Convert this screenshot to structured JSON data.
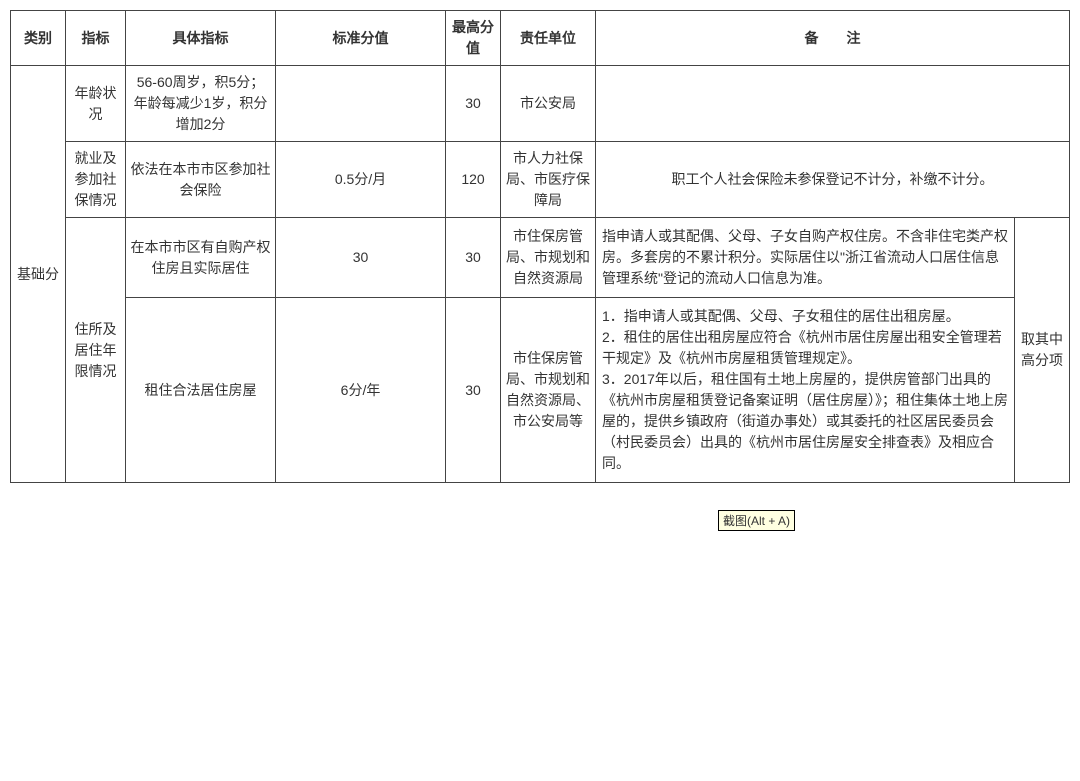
{
  "headers": {
    "category": "类别",
    "indicator": "指标",
    "detail": "具体指标",
    "standard": "标准分值",
    "max": "最高分值",
    "dept": "责任单位",
    "remark": "备　　注"
  },
  "category_label": "基础分",
  "rows": {
    "row1": {
      "indicator": "年龄状况",
      "detail": "56-60周岁，积5分；年龄每减少1岁，积分增加2分",
      "standard": "",
      "max": "30",
      "dept": "市公安局",
      "remark": ""
    },
    "row2": {
      "indicator": "就业及参加社保情况",
      "detail": "依法在本市市区参加社会保险",
      "standard": "0.5分/月",
      "max": "120",
      "dept": "市人力社保局、市医疗保障局",
      "remark": "职工个人社会保险未参保登记不计分，补缴不计分。"
    },
    "row3": {
      "indicator": "住所及居住年限情况",
      "detail": "在本市市区有自购产权住房且实际居住",
      "standard": "30",
      "max": "30",
      "dept": "市住保房管局、市规划和自然资源局",
      "remark": "指申请人或其配偶、父母、子女自购产权住房。不含非住宅类产权房。多套房的不累计积分。实际居住以\"浙江省流动人口居住信息管理系统\"登记的流动人口信息为准。"
    },
    "row4": {
      "detail": "租住合法居住房屋",
      "standard": "6分/年",
      "max": "30",
      "dept": "市住保房管局、市规划和自然资源局、市公安局等",
      "remark": "1．指申请人或其配偶、父母、子女租住的居住出租房屋。\n2．租住的居住出租房屋应符合《杭州市居住房屋出租安全管理若干规定》及《杭州市房屋租赁管理规定》。\n3．2017年以后，租住国有土地上房屋的，提供房管部门出具的《杭州市房屋租赁登记备案证明（居住房屋）》；租住集体土地上房屋的，提供乡镇政府（街道办事处）或其委托的社区居民委员会（村民委员会）出具的《杭州市居住房屋安全排查表》及相应合同。"
    },
    "group_remark": "取其中高分项"
  },
  "tooltip_text": "截图(Alt + A)",
  "colors": {
    "border": "#444444",
    "text": "#333333",
    "bg": "#ffffff",
    "tooltip_bg": "#ffffe1"
  }
}
